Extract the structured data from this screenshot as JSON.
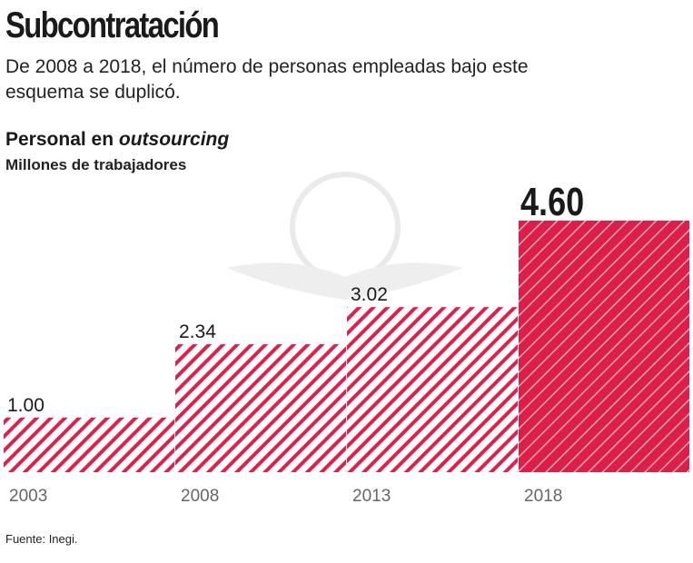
{
  "header": {
    "title": "Subcontratación",
    "subtitle": "De 2008 a 2018, el número de personas empleadas bajo este esquema se duplicó."
  },
  "chart_data": {
    "type": "bar",
    "title": "Personal en outsourcing",
    "title_plain": "Personal en ",
    "title_italic": "outsourcing",
    "ylabel": "Millones de trabajadores",
    "categories": [
      "2003",
      "2008",
      "2013",
      "2018"
    ],
    "values": [
      1.0,
      2.34,
      3.02,
      4.6
    ],
    "labels": [
      "1.00",
      "2.34",
      "3.02",
      "4.60"
    ],
    "ylim": [
      0,
      4.6
    ],
    "grid": false,
    "colors": {
      "hatch": "#e0204a",
      "highlight": "#dc1e48"
    },
    "highlight_index": 3
  },
  "footer": {
    "source": "Fuente: Inegi."
  }
}
